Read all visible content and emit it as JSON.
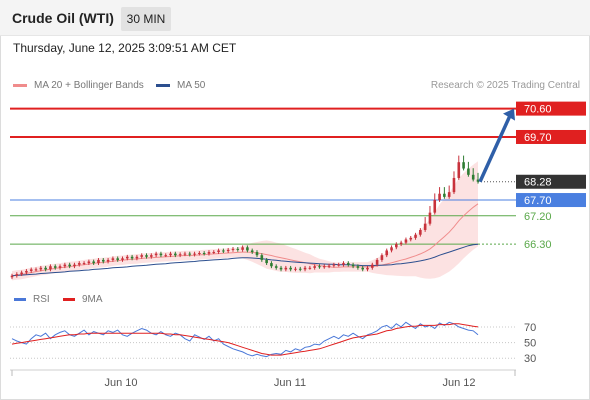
{
  "header": {
    "title": "Crude Oil (WTI)",
    "timeframe": "30 MIN"
  },
  "datetime": "Thursday, June 12, 2025 3:09:51 AM CET",
  "legend": {
    "ma20_label": "MA 20 + Bollinger Bands",
    "ma20_color": "#f08c8c",
    "ma50_label": "MA 50",
    "ma50_color": "#2c4f8f"
  },
  "credit": "Research © 2025 Trading Central",
  "colors": {
    "resistance": "#e02020",
    "pivot": "#4a7fe0",
    "support": "#5aa84a",
    "current": "#333333",
    "candle_up": "#c8323c",
    "candle_down": "#2e7d32",
    "arrow": "#2f5fa8",
    "rsi": "#4a78d8",
    "rsi_ma": "#e02020"
  },
  "chart_data": [
    {
      "type": "candlestick",
      "x_ticks": [
        "Jun 10",
        "Jun 11",
        "Jun 12"
      ],
      "ylim": [
        65.1,
        71.0
      ],
      "levels": [
        {
          "label": "70.60",
          "value": 70.6,
          "kind": "resistance"
        },
        {
          "label": "69.70",
          "value": 69.7,
          "kind": "resistance"
        },
        {
          "label": "68.28",
          "value": 68.28,
          "kind": "current"
        },
        {
          "label": "67.70",
          "value": 67.7,
          "kind": "pivot"
        },
        {
          "label": "67.20",
          "value": 67.2,
          "kind": "support"
        },
        {
          "label": "66.30",
          "value": 66.3,
          "kind": "support"
        }
      ],
      "arrow": {
        "from": 68.28,
        "to": 70.6
      },
      "close": [
        65.3,
        65.35,
        65.4,
        65.45,
        65.5,
        65.5,
        65.55,
        65.5,
        65.6,
        65.55,
        65.6,
        65.65,
        65.6,
        65.65,
        65.7,
        65.7,
        65.75,
        65.7,
        65.8,
        65.75,
        65.8,
        65.85,
        65.8,
        65.85,
        65.9,
        65.85,
        65.9,
        65.95,
        65.9,
        65.95,
        66.0,
        65.95,
        65.95,
        66.0,
        65.95,
        65.98,
        66.0,
        65.97,
        66.0,
        66.02,
        66.0,
        66.05,
        66.05,
        66.1,
        66.08,
        66.12,
        66.15,
        66.12,
        66.2,
        66.1,
        66.05,
        65.95,
        65.8,
        65.7,
        65.6,
        65.55,
        65.5,
        65.55,
        65.5,
        65.52,
        65.5,
        65.55,
        65.55,
        65.6,
        65.58,
        65.6,
        65.62,
        65.65,
        65.65,
        65.7,
        65.65,
        65.6,
        65.55,
        65.5,
        65.55,
        65.65,
        65.8,
        65.95,
        66.1,
        66.2,
        66.3,
        66.35,
        66.45,
        66.5,
        66.6,
        66.75,
        66.95,
        67.3,
        67.7,
        67.9,
        67.8,
        67.95,
        68.4,
        68.9,
        68.7,
        68.5,
        68.35,
        68.28
      ],
      "ma20": [
        65.3,
        65.32,
        65.34,
        65.37,
        65.4,
        65.43,
        65.46,
        65.48,
        65.51,
        65.53,
        65.55,
        65.57,
        65.59,
        65.61,
        65.63,
        65.65,
        65.67,
        65.69,
        65.71,
        65.72,
        65.74,
        65.76,
        65.78,
        65.79,
        65.81,
        65.82,
        65.83,
        65.85,
        65.86,
        65.87,
        65.88,
        65.89,
        65.9,
        65.91,
        65.92,
        65.93,
        65.94,
        65.94,
        65.95,
        65.96,
        65.97,
        65.98,
        65.99,
        66.0,
        66.01,
        66.02,
        66.03,
        66.04,
        66.05,
        66.05,
        66.04,
        66.02,
        66.0,
        65.97,
        65.94,
        65.9,
        65.87,
        65.84,
        65.8,
        65.77,
        65.74,
        65.71,
        65.68,
        65.65,
        65.62,
        65.6,
        65.58,
        65.57,
        65.57,
        65.58,
        65.58,
        65.58,
        65.58,
        65.58,
        65.58,
        65.59,
        65.61,
        65.64,
        65.67,
        65.71,
        65.75,
        65.79,
        65.83,
        65.88,
        65.93,
        65.99,
        66.06,
        66.15,
        66.27,
        66.41,
        66.54,
        66.68,
        66.85,
        67.04,
        67.2,
        67.34,
        67.47,
        67.58
      ],
      "bb_width": [
        0.15,
        0.15,
        0.15,
        0.15,
        0.15,
        0.15,
        0.15,
        0.15,
        0.15,
        0.15,
        0.15,
        0.15,
        0.15,
        0.15,
        0.15,
        0.15,
        0.15,
        0.15,
        0.15,
        0.15,
        0.15,
        0.15,
        0.15,
        0.15,
        0.15,
        0.15,
        0.15,
        0.15,
        0.15,
        0.15,
        0.15,
        0.15,
        0.15,
        0.15,
        0.15,
        0.15,
        0.15,
        0.15,
        0.15,
        0.15,
        0.15,
        0.15,
        0.15,
        0.15,
        0.15,
        0.15,
        0.15,
        0.15,
        0.2,
        0.25,
        0.3,
        0.35,
        0.4,
        0.45,
        0.45,
        0.45,
        0.45,
        0.42,
        0.4,
        0.38,
        0.35,
        0.32,
        0.3,
        0.25,
        0.22,
        0.2,
        0.18,
        0.15,
        0.15,
        0.15,
        0.15,
        0.15,
        0.15,
        0.15,
        0.15,
        0.2,
        0.25,
        0.3,
        0.35,
        0.4,
        0.45,
        0.5,
        0.55,
        0.6,
        0.65,
        0.75,
        0.85,
        0.95,
        1.05,
        1.15,
        1.2,
        1.25,
        1.3,
        1.35,
        1.35,
        1.35,
        1.35,
        1.35
      ],
      "ma50": [
        65.3,
        65.31,
        65.32,
        65.33,
        65.34,
        65.35,
        65.37,
        65.38,
        65.39,
        65.4,
        65.41,
        65.42,
        65.44,
        65.45,
        65.46,
        65.47,
        65.48,
        65.5,
        65.51,
        65.52,
        65.53,
        65.55,
        65.56,
        65.57,
        65.58,
        65.6,
        65.61,
        65.62,
        65.63,
        65.65,
        65.66,
        65.67,
        65.68,
        65.7,
        65.71,
        65.72,
        65.73,
        65.74,
        65.75,
        65.77,
        65.78,
        65.79,
        65.8,
        65.81,
        65.82,
        65.83,
        65.85,
        65.86,
        65.87,
        65.87,
        65.86,
        65.85,
        65.84,
        65.82,
        65.8,
        65.79,
        65.77,
        65.76,
        65.74,
        65.73,
        65.72,
        65.71,
        65.7,
        65.69,
        65.68,
        65.67,
        65.66,
        65.66,
        65.65,
        65.65,
        65.65,
        65.64,
        65.63,
        65.62,
        65.62,
        65.62,
        65.63,
        65.63,
        65.64,
        65.65,
        65.67,
        65.68,
        65.7,
        65.72,
        65.74,
        65.77,
        65.8,
        65.84,
        65.89,
        65.95,
        66.0,
        66.05,
        66.1,
        66.15,
        66.2,
        66.25,
        66.28,
        66.3
      ]
    },
    {
      "type": "line",
      "legend": [
        "RSI",
        "9MA"
      ],
      "y_ticks": [
        70,
        50,
        30
      ],
      "ylim": [
        20,
        84
      ],
      "rsi": [
        55,
        52,
        50,
        48,
        55,
        60,
        58,
        62,
        55,
        60,
        63,
        65,
        60,
        58,
        62,
        66,
        60,
        64,
        62,
        60,
        65,
        63,
        66,
        60,
        58,
        62,
        65,
        68,
        66,
        62,
        60,
        64,
        60,
        58,
        62,
        60,
        55,
        52,
        60,
        57,
        54,
        58,
        52,
        55,
        48,
        45,
        42,
        40,
        38,
        35,
        33,
        35,
        33,
        32,
        35,
        36,
        35,
        40,
        38,
        42,
        40,
        44,
        45,
        48,
        47,
        52,
        55,
        58,
        55,
        60,
        58,
        62,
        58,
        55,
        60,
        62,
        65,
        70,
        72,
        68,
        74,
        70,
        76,
        72,
        68,
        74,
        70,
        72,
        68,
        75,
        72,
        76,
        74,
        70,
        68,
        66,
        65,
        60
      ],
      "rsi_ma": [
        48,
        49,
        50,
        51,
        52,
        53,
        54,
        55,
        56,
        57,
        58,
        59,
        60,
        60,
        61,
        61,
        62,
        62,
        62,
        62,
        62,
        62,
        62,
        62,
        62,
        62,
        62,
        62,
        62,
        62,
        62,
        62,
        61,
        61,
        60,
        60,
        59,
        58,
        57,
        56,
        55,
        54,
        53,
        52,
        51,
        50,
        48,
        46,
        44,
        42,
        40,
        38,
        36,
        35,
        34,
        34,
        34,
        35,
        36,
        37,
        38,
        39,
        40,
        41,
        42,
        44,
        46,
        48,
        50,
        52,
        54,
        56,
        57,
        58,
        59,
        60,
        61,
        63,
        65,
        66,
        68,
        69,
        70,
        71,
        71,
        72,
        72,
        72,
        72,
        73,
        73,
        73,
        74,
        74,
        73,
        72,
        71,
        70
      ]
    }
  ]
}
